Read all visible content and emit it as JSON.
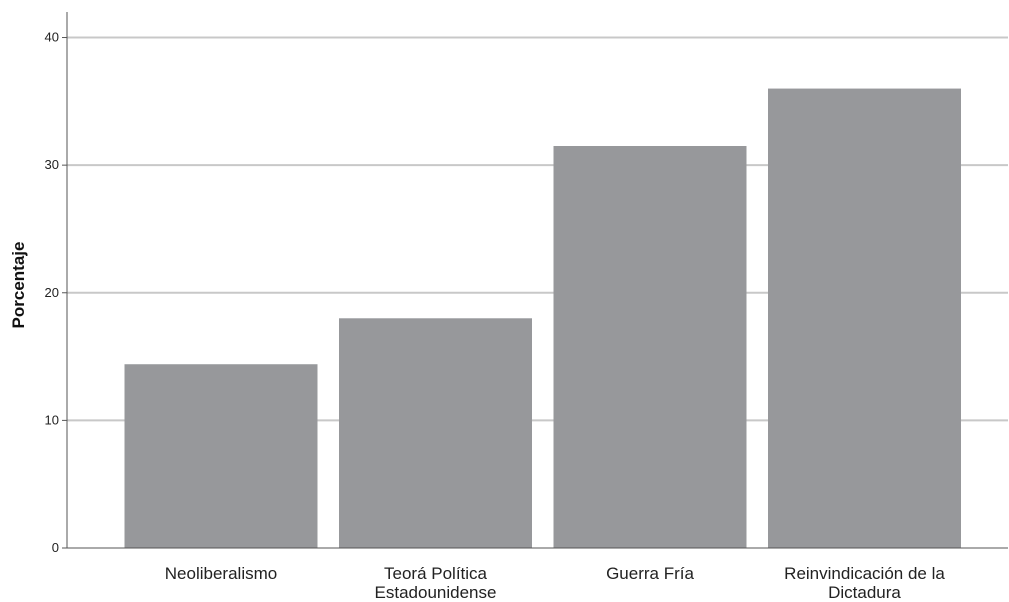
{
  "chart_data": {
    "type": "bar",
    "categories": [
      [
        "Neoliberalismo"
      ],
      [
        "Teorá Política",
        "Estadounidense"
      ],
      [
        "Guerra Fría"
      ],
      [
        "Reinvindicación de la",
        "Dictadura"
      ]
    ],
    "values": [
      14.4,
      18.0,
      31.5,
      36.0
    ],
    "title": "",
    "xlabel": "",
    "ylabel": "Porcentaje",
    "ylim": [
      0,
      42
    ],
    "yticks": [
      0,
      10,
      20,
      30,
      40
    ],
    "grid": "horizontal",
    "colors": {
      "bar": "#97989b",
      "grid": "#c8c8c8",
      "axis": "#555555"
    }
  }
}
